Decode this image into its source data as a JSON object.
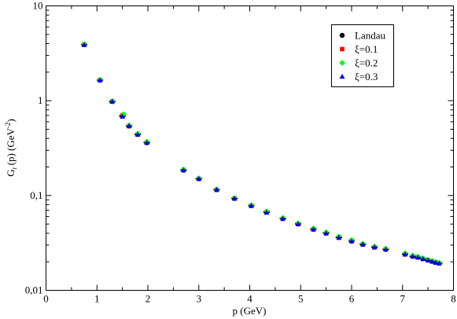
{
  "chart_data": {
    "type": "scatter",
    "title": "",
    "xlabel": "p (GeV)",
    "ylabel": {
      "main": "G",
      "sub": "r",
      "mid": "(p) (GeV",
      "sup": "-2",
      "end": ")"
    },
    "xlim": [
      0,
      8
    ],
    "ylim": [
      0.01,
      10
    ],
    "yscale": "log",
    "x_ticks": [
      "0",
      "1",
      "2",
      "3",
      "4",
      "5",
      "6",
      "7",
      "8"
    ],
    "y_ticks": [
      "0,01",
      "0,1",
      "1",
      "10"
    ],
    "grid": false,
    "legend_position": "top-right",
    "series": [
      {
        "name": "Landau",
        "color": "#000000",
        "marker": "circle",
        "x": [
          0.75,
          1.06,
          1.3,
          1.5,
          1.63,
          1.8,
          1.98,
          2.7,
          3.0,
          3.35,
          3.7,
          4.03,
          4.33,
          4.65,
          4.95,
          5.25,
          5.5,
          5.75,
          6.0,
          6.22,
          6.45,
          6.67,
          7.05,
          7.2,
          7.3,
          7.4,
          7.5,
          7.58,
          7.65,
          7.72
        ],
        "y": [
          3.9,
          1.65,
          0.98,
          0.69,
          0.54,
          0.44,
          0.36,
          0.185,
          0.15,
          0.115,
          0.093,
          0.078,
          0.067,
          0.057,
          0.05,
          0.044,
          0.04,
          0.036,
          0.033,
          0.0305,
          0.0285,
          0.027,
          0.024,
          0.0228,
          0.0223,
          0.0215,
          0.0208,
          0.0202,
          0.0197,
          0.0193
        ]
      },
      {
        "name": "ξ=0.1",
        "color": "#ff0000",
        "marker": "square",
        "x": [
          0.75,
          1.06,
          1.3,
          1.5,
          1.63,
          1.8,
          1.98,
          2.7,
          3.0,
          3.35,
          3.7,
          4.03,
          4.33,
          4.65,
          4.95,
          5.25,
          5.5,
          5.75,
          6.0,
          6.22,
          6.45,
          6.67,
          7.05,
          7.2,
          7.3,
          7.4,
          7.5,
          7.58,
          7.65,
          7.72
        ],
        "y": [
          3.9,
          1.65,
          0.98,
          0.7,
          0.54,
          0.44,
          0.36,
          0.186,
          0.15,
          0.115,
          0.093,
          0.078,
          0.067,
          0.057,
          0.05,
          0.044,
          0.04,
          0.036,
          0.033,
          0.0305,
          0.0285,
          0.027,
          0.024,
          0.0228,
          0.0223,
          0.0215,
          0.0208,
          0.0202,
          0.0197,
          0.0193
        ]
      },
      {
        "name": "ξ=0.2",
        "color": "#00ff00",
        "marker": "diamond",
        "x": [
          0.75,
          1.06,
          1.3,
          1.52,
          1.63,
          1.8,
          1.98,
          2.7,
          3.0,
          3.35,
          3.7,
          4.03,
          4.33,
          4.65,
          4.95,
          5.25,
          5.5,
          5.75,
          6.0,
          6.22,
          6.45,
          6.67,
          7.05,
          7.2,
          7.3,
          7.4,
          7.5,
          7.58,
          7.65,
          7.72
        ],
        "y": [
          3.95,
          1.66,
          0.99,
          0.72,
          0.55,
          0.45,
          0.37,
          0.188,
          0.152,
          0.116,
          0.094,
          0.079,
          0.068,
          0.058,
          0.051,
          0.045,
          0.041,
          0.037,
          0.034,
          0.031,
          0.029,
          0.0275,
          0.0245,
          0.0232,
          0.0226,
          0.0218,
          0.021,
          0.0204,
          0.0199,
          0.0195
        ]
      },
      {
        "name": "ξ=0.3",
        "color": "#0000ff",
        "marker": "triangle",
        "x": [
          0.75,
          1.06,
          1.3,
          1.5,
          1.63,
          1.8,
          1.98,
          2.7,
          3.0,
          3.35,
          3.7,
          4.03,
          4.33,
          4.65,
          4.95,
          5.25,
          5.5,
          5.75,
          6.0,
          6.22,
          6.45,
          6.67,
          7.05,
          7.2,
          7.3,
          7.4,
          7.5,
          7.58,
          7.65,
          7.72
        ],
        "y": [
          3.88,
          1.64,
          0.98,
          0.68,
          0.54,
          0.44,
          0.36,
          0.185,
          0.15,
          0.115,
          0.093,
          0.078,
          0.066,
          0.057,
          0.05,
          0.044,
          0.04,
          0.036,
          0.033,
          0.0305,
          0.0285,
          0.027,
          0.024,
          0.0228,
          0.0222,
          0.0214,
          0.0207,
          0.0201,
          0.0196,
          0.0192
        ]
      }
    ]
  }
}
